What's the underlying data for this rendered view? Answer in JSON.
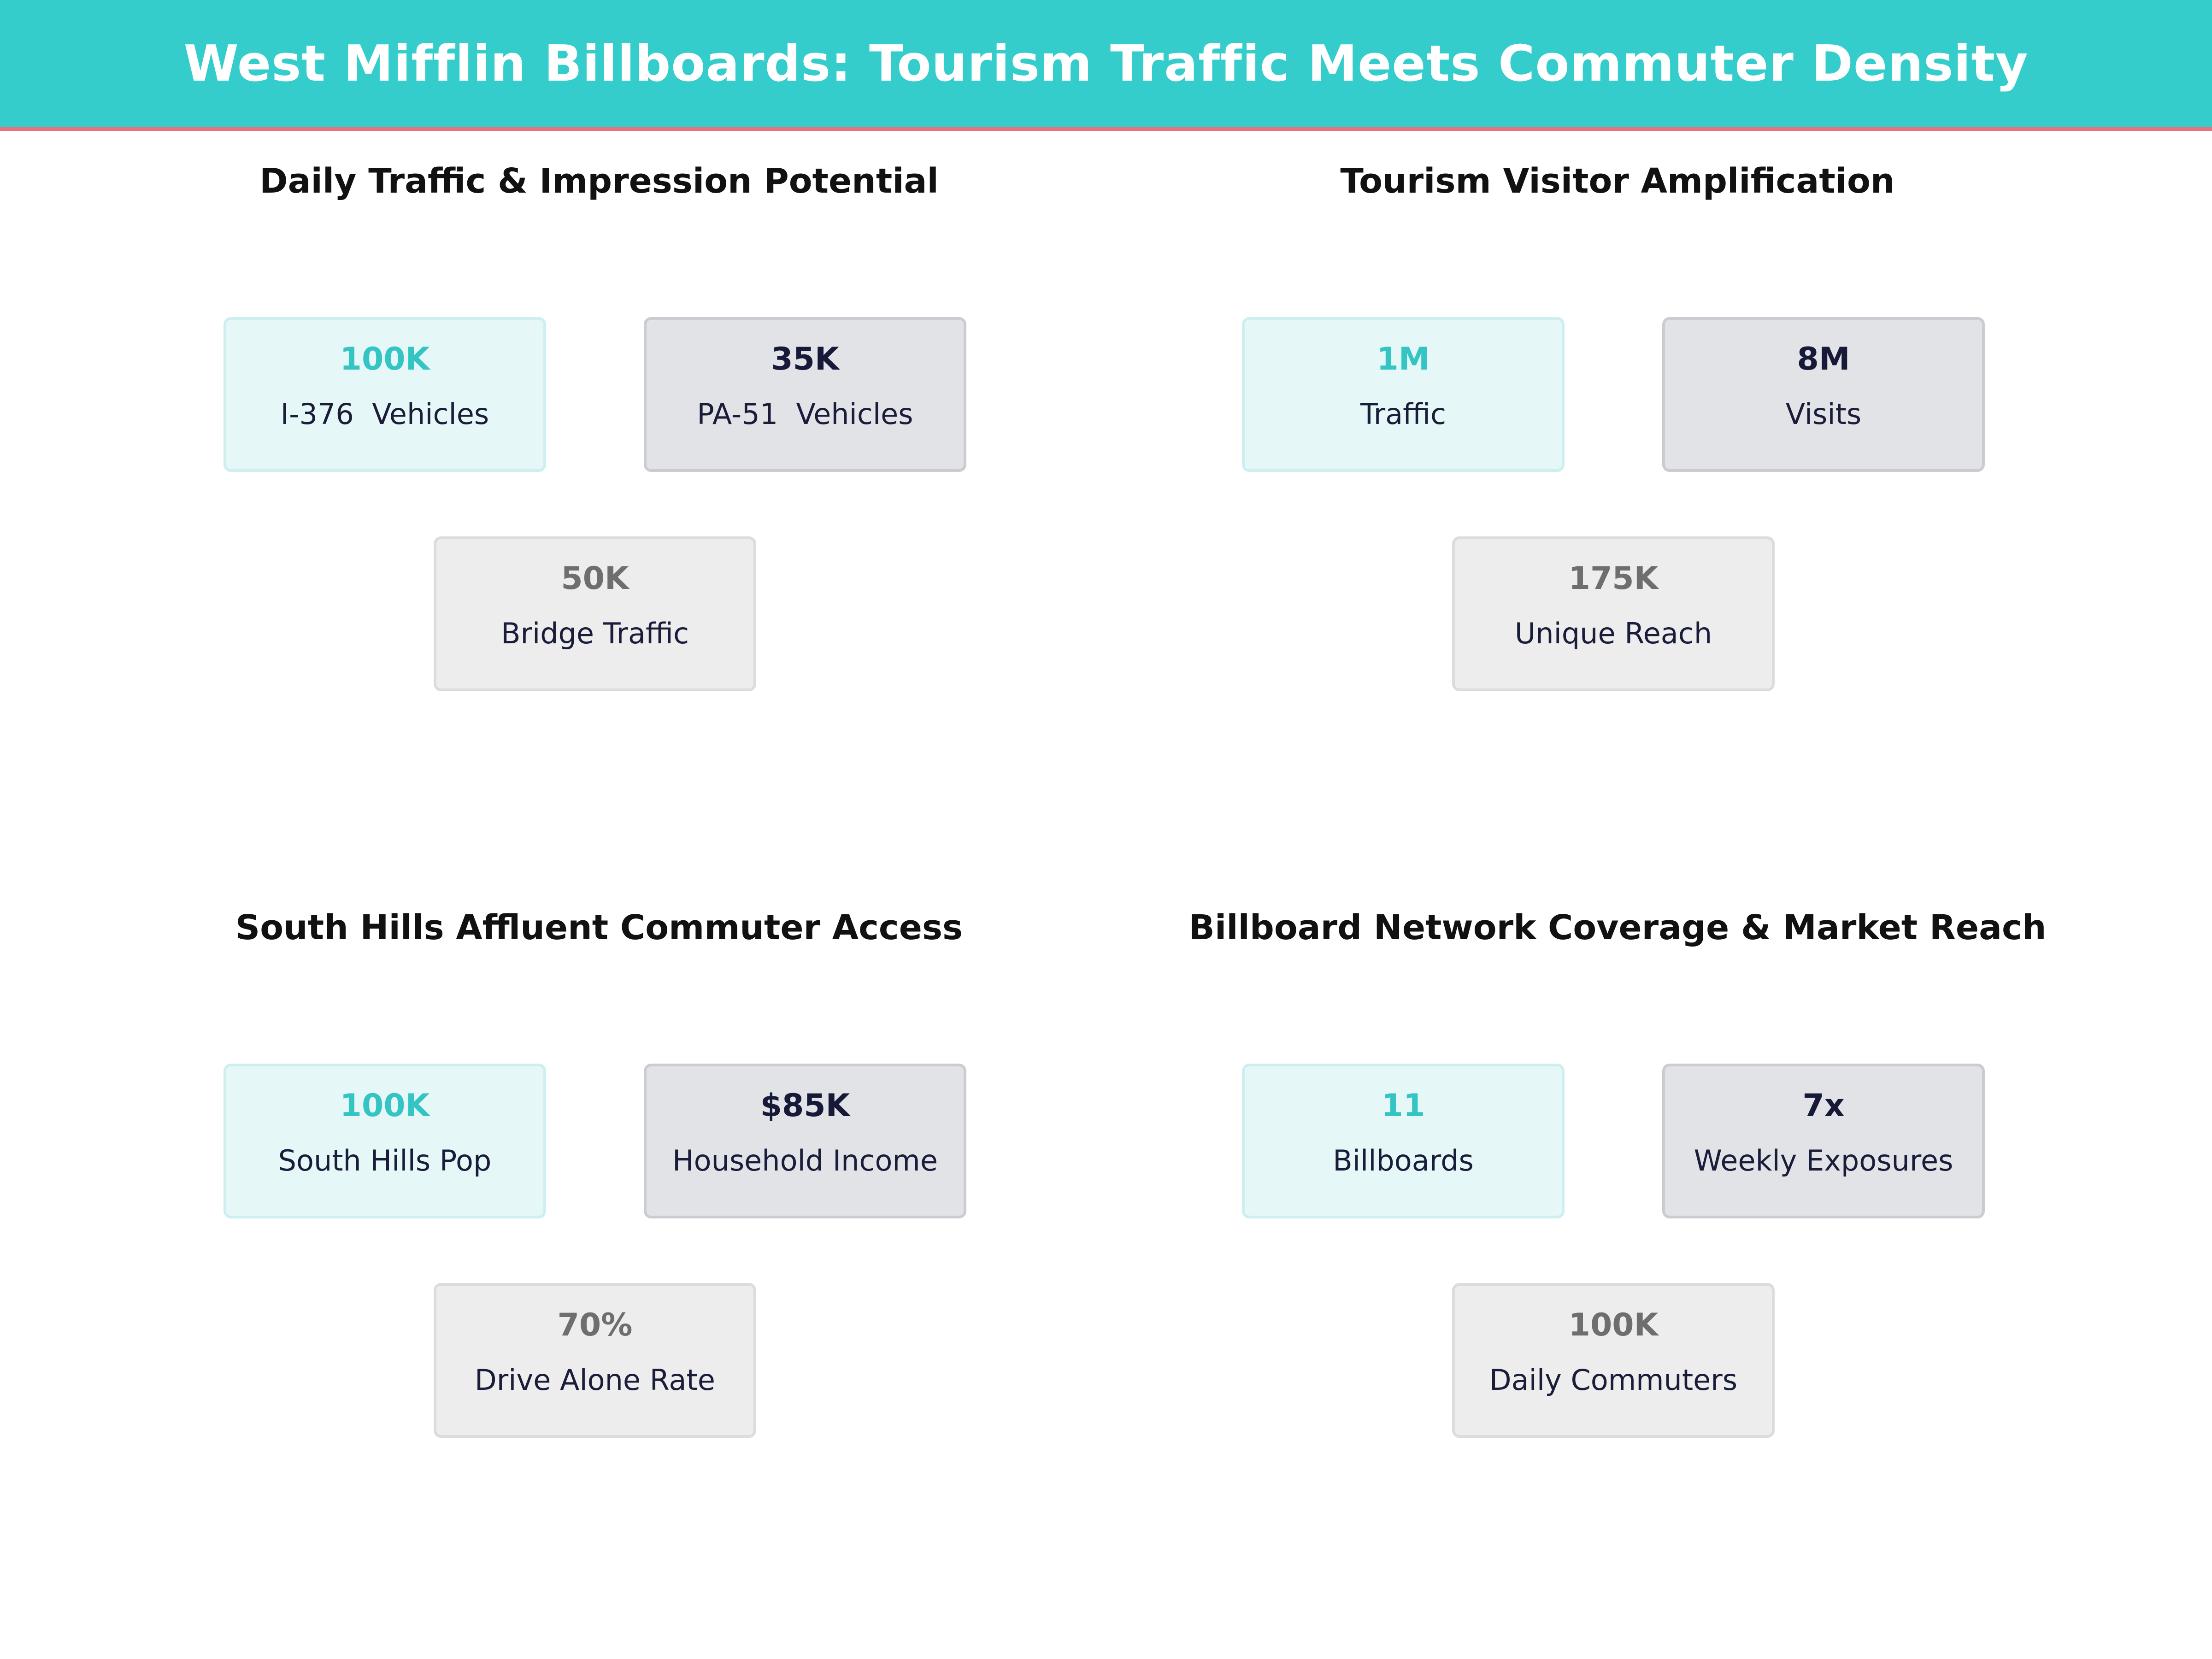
{
  "header": {
    "title": "West Mifflin Billboards: Tourism Traffic Meets Commuter Density"
  },
  "panels": [
    {
      "title": "Daily Traffic & Impression Potential",
      "cards": [
        {
          "value": "100K",
          "label": "I-376  Vehicles"
        },
        {
          "value": "35K",
          "label": "PA-51  Vehicles"
        },
        {
          "value": "50K",
          "label": "Bridge Traffic"
        }
      ]
    },
    {
      "title": "Tourism Visitor Amplification",
      "cards": [
        {
          "value": "1M",
          "label": "Traffic"
        },
        {
          "value": "8M",
          "label": "Visits"
        },
        {
          "value": "175K",
          "label": "Unique Reach"
        }
      ]
    },
    {
      "title": "South Hills Affluent Commuter Access",
      "cards": [
        {
          "value": "100K",
          "label": "South Hills Pop"
        },
        {
          "value": "$85K",
          "label": "Household Income"
        },
        {
          "value": "70%",
          "label": "Drive Alone Rate"
        }
      ]
    },
    {
      "title": "Billboard Network Coverage & Market Reach",
      "cards": [
        {
          "value": "11",
          "label": "Billboards"
        },
        {
          "value": "7x",
          "label": "Weekly Exposures"
        },
        {
          "value": "100K",
          "label": "Daily Commuters"
        }
      ]
    }
  ],
  "colors": {
    "header_bg": "#35cccc",
    "header_accent": "#e8737f",
    "primary_value": "#35c4c4",
    "secondary_value": "#161a38",
    "tertiary_value": "#6e6e6e"
  }
}
